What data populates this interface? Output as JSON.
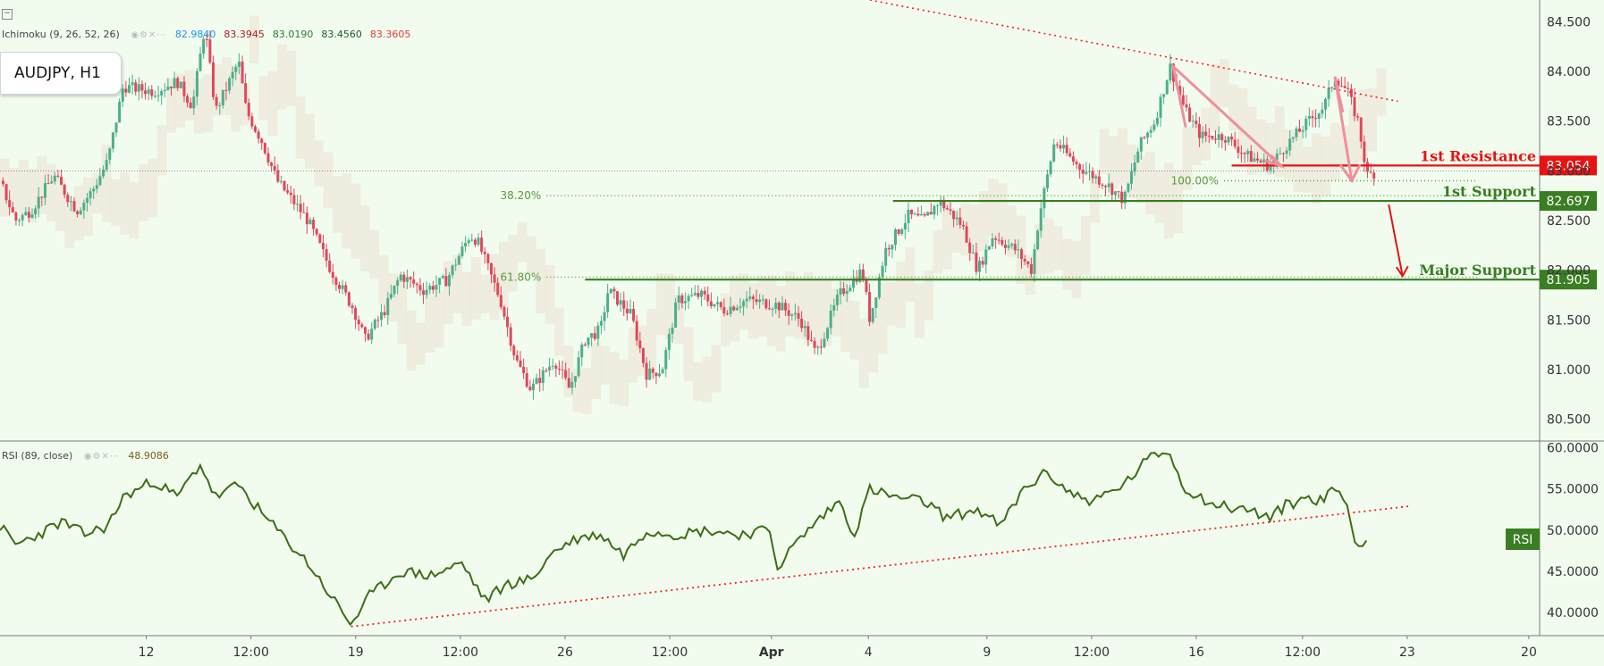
{
  "symbol_label": "AUDJPY, H1",
  "collapse_glyph": "−",
  "legend_buttons": "◉⚙✕⋯",
  "ichimoku": {
    "name": "Ichimoku (9, 26, 52, 26)",
    "values": [
      {
        "text": "82.9840",
        "color": "#2196f3"
      },
      {
        "text": "83.3945",
        "color": "#b71c1c"
      },
      {
        "text": "83.0190",
        "color": "#2e7d32"
      },
      {
        "text": "83.4560",
        "color": "#1b5e20"
      },
      {
        "text": "83.3605",
        "color": "#e53935"
      }
    ]
  },
  "rsi_legend": {
    "name": "RSI (89, close)",
    "value": "48.9086"
  },
  "colors": {
    "background": "#f1fcef",
    "up_candle": "#4caf8a",
    "down_candle": "#e0485a",
    "resistance": "#e81212",
    "support": "#3a7d22",
    "rsi_line": "#3c6e16",
    "trendline": "#ff1a1a",
    "fib": "#5a9a3a",
    "arrow_pink": "#f08f9b",
    "cloud": "#ece7d9"
  },
  "chart_data": {
    "type": "candlestick",
    "timeframe": "H1",
    "price_axis": [
      "84.500",
      "84.000",
      "83.500",
      "83.000",
      "82.500",
      "82.000",
      "81.500",
      "81.000",
      "80.500"
    ],
    "price_range": [
      80.28,
      84.72
    ],
    "rsi_axis": [
      "60.0000",
      "55.0000",
      "50.0000",
      "45.0000",
      "40.0000"
    ],
    "rsi_range": [
      37.2,
      60.6
    ],
    "time_axis": [
      "12",
      "12:00",
      "19",
      "12:00",
      "26",
      "12:00",
      "Apr",
      "4",
      "9",
      "12:00",
      "16",
      "12:00",
      "23",
      "20"
    ],
    "time_axis_pos": [
      0.095,
      0.163,
      0.231,
      0.299,
      0.367,
      0.435,
      0.501,
      0.564,
      0.641,
      0.709,
      0.777,
      0.846,
      0.914,
      0.993
    ],
    "price_path": [
      [
        0.0,
        82.9
      ],
      [
        0.01,
        82.5
      ],
      [
        0.02,
        82.6
      ],
      [
        0.035,
        82.95
      ],
      [
        0.05,
        82.6
      ],
      [
        0.06,
        82.8
      ],
      [
        0.07,
        83.1
      ],
      [
        0.08,
        83.85
      ],
      [
        0.1,
        83.8
      ],
      [
        0.115,
        83.9
      ],
      [
        0.125,
        83.65
      ],
      [
        0.133,
        84.45
      ],
      [
        0.14,
        83.6
      ],
      [
        0.155,
        84.1
      ],
      [
        0.16,
        83.6
      ],
      [
        0.17,
        83.3
      ],
      [
        0.18,
        82.9
      ],
      [
        0.2,
        82.5
      ],
      [
        0.215,
        82.0
      ],
      [
        0.23,
        81.6
      ],
      [
        0.237,
        81.3
      ],
      [
        0.25,
        81.6
      ],
      [
        0.26,
        81.95
      ],
      [
        0.275,
        81.8
      ],
      [
        0.29,
        81.9
      ],
      [
        0.305,
        82.35
      ],
      [
        0.31,
        82.3
      ],
      [
        0.325,
        81.7
      ],
      [
        0.335,
        81.1
      ],
      [
        0.345,
        80.8
      ],
      [
        0.36,
        81.1
      ],
      [
        0.37,
        80.8
      ],
      [
        0.38,
        81.3
      ],
      [
        0.39,
        81.4
      ],
      [
        0.395,
        81.8
      ],
      [
        0.41,
        81.55
      ],
      [
        0.42,
        80.95
      ],
      [
        0.43,
        81.0
      ],
      [
        0.44,
        81.7
      ],
      [
        0.455,
        81.75
      ],
      [
        0.47,
        81.6
      ],
      [
        0.485,
        81.7
      ],
      [
        0.505,
        81.65
      ],
      [
        0.52,
        81.5
      ],
      [
        0.53,
        81.15
      ],
      [
        0.545,
        81.75
      ],
      [
        0.56,
        82.0
      ],
      [
        0.565,
        81.5
      ],
      [
        0.575,
        82.2
      ],
      [
        0.59,
        82.55
      ],
      [
        0.6,
        82.5
      ],
      [
        0.61,
        82.7
      ],
      [
        0.625,
        82.45
      ],
      [
        0.635,
        82.0
      ],
      [
        0.645,
        82.35
      ],
      [
        0.66,
        82.2
      ],
      [
        0.67,
        82.0
      ],
      [
        0.675,
        82.55
      ],
      [
        0.685,
        83.3
      ],
      [
        0.7,
        83.05
      ],
      [
        0.72,
        82.85
      ],
      [
        0.73,
        82.7
      ],
      [
        0.74,
        83.25
      ],
      [
        0.75,
        83.5
      ],
      [
        0.76,
        84.05
      ],
      [
        0.77,
        83.6
      ],
      [
        0.78,
        83.35
      ],
      [
        0.795,
        83.35
      ],
      [
        0.81,
        83.15
      ],
      [
        0.825,
        83.05
      ],
      [
        0.835,
        83.25
      ],
      [
        0.85,
        83.5
      ],
      [
        0.86,
        83.65
      ],
      [
        0.867,
        83.95
      ],
      [
        0.875,
        83.8
      ],
      [
        0.882,
        83.5
      ],
      [
        0.888,
        82.95
      ],
      [
        0.895,
        83.0
      ]
    ],
    "rsi_path": [
      [
        0.0,
        50.5
      ],
      [
        0.01,
        48.2
      ],
      [
        0.025,
        49.5
      ],
      [
        0.04,
        51.0
      ],
      [
        0.055,
        49.5
      ],
      [
        0.07,
        50.5
      ],
      [
        0.08,
        54.0
      ],
      [
        0.1,
        56.0
      ],
      [
        0.115,
        54.0
      ],
      [
        0.13,
        58.0
      ],
      [
        0.14,
        54.0
      ],
      [
        0.155,
        55.5
      ],
      [
        0.17,
        52.0
      ],
      [
        0.185,
        49.0
      ],
      [
        0.2,
        46.0
      ],
      [
        0.215,
        42.0
      ],
      [
        0.228,
        38.6
      ],
      [
        0.24,
        42.0
      ],
      [
        0.26,
        45.0
      ],
      [
        0.28,
        44.5
      ],
      [
        0.3,
        46.0
      ],
      [
        0.315,
        41.5
      ],
      [
        0.33,
        43.5
      ],
      [
        0.345,
        44.0
      ],
      [
        0.36,
        47.5
      ],
      [
        0.375,
        49.0
      ],
      [
        0.39,
        49.5
      ],
      [
        0.405,
        47.0
      ],
      [
        0.42,
        50.0
      ],
      [
        0.44,
        49.5
      ],
      [
        0.46,
        50.0
      ],
      [
        0.48,
        49.5
      ],
      [
        0.5,
        50.0
      ],
      [
        0.505,
        45.5
      ],
      [
        0.515,
        48.0
      ],
      [
        0.53,
        51.0
      ],
      [
        0.545,
        53.5
      ],
      [
        0.555,
        49.5
      ],
      [
        0.565,
        55.0
      ],
      [
        0.58,
        54.0
      ],
      [
        0.6,
        53.5
      ],
      [
        0.615,
        51.5
      ],
      [
        0.635,
        52.5
      ],
      [
        0.65,
        50.5
      ],
      [
        0.665,
        55.0
      ],
      [
        0.68,
        57.0
      ],
      [
        0.695,
        54.5
      ],
      [
        0.71,
        53.5
      ],
      [
        0.73,
        55.5
      ],
      [
        0.745,
        58.5
      ],
      [
        0.758,
        59.8
      ],
      [
        0.77,
        55.0
      ],
      [
        0.79,
        53.0
      ],
      [
        0.81,
        52.5
      ],
      [
        0.825,
        51.5
      ],
      [
        0.835,
        53.0
      ],
      [
        0.85,
        54.0
      ],
      [
        0.86,
        53.5
      ],
      [
        0.867,
        55.5
      ],
      [
        0.875,
        53.0
      ],
      [
        0.88,
        48.5
      ],
      [
        0.888,
        48.9
      ]
    ],
    "levels": [
      {
        "label": "1st Resistance",
        "price": 83.054,
        "value_text": "83.054",
        "color": "#e81212",
        "x_start": 0.8
      },
      {
        "label": "1st Support",
        "price": 82.697,
        "value_text": "82.697",
        "color": "#3a7d22",
        "x_start": 0.58
      },
      {
        "label": "Major Support",
        "price": 81.905,
        "value_text": "81.905",
        "color": "#3a7d22",
        "x_start": 0.38
      }
    ],
    "fib_levels": [
      {
        "label": "38.20%",
        "price": 82.75,
        "x_start": 0.355
      },
      {
        "label": "61.80%",
        "price": 81.93,
        "x_start": 0.355
      },
      {
        "label": "100.00%",
        "price": 82.9,
        "x_start": 0.795
      }
    ],
    "rsi_label": "RSI",
    "rsi_current": 48.9
  }
}
